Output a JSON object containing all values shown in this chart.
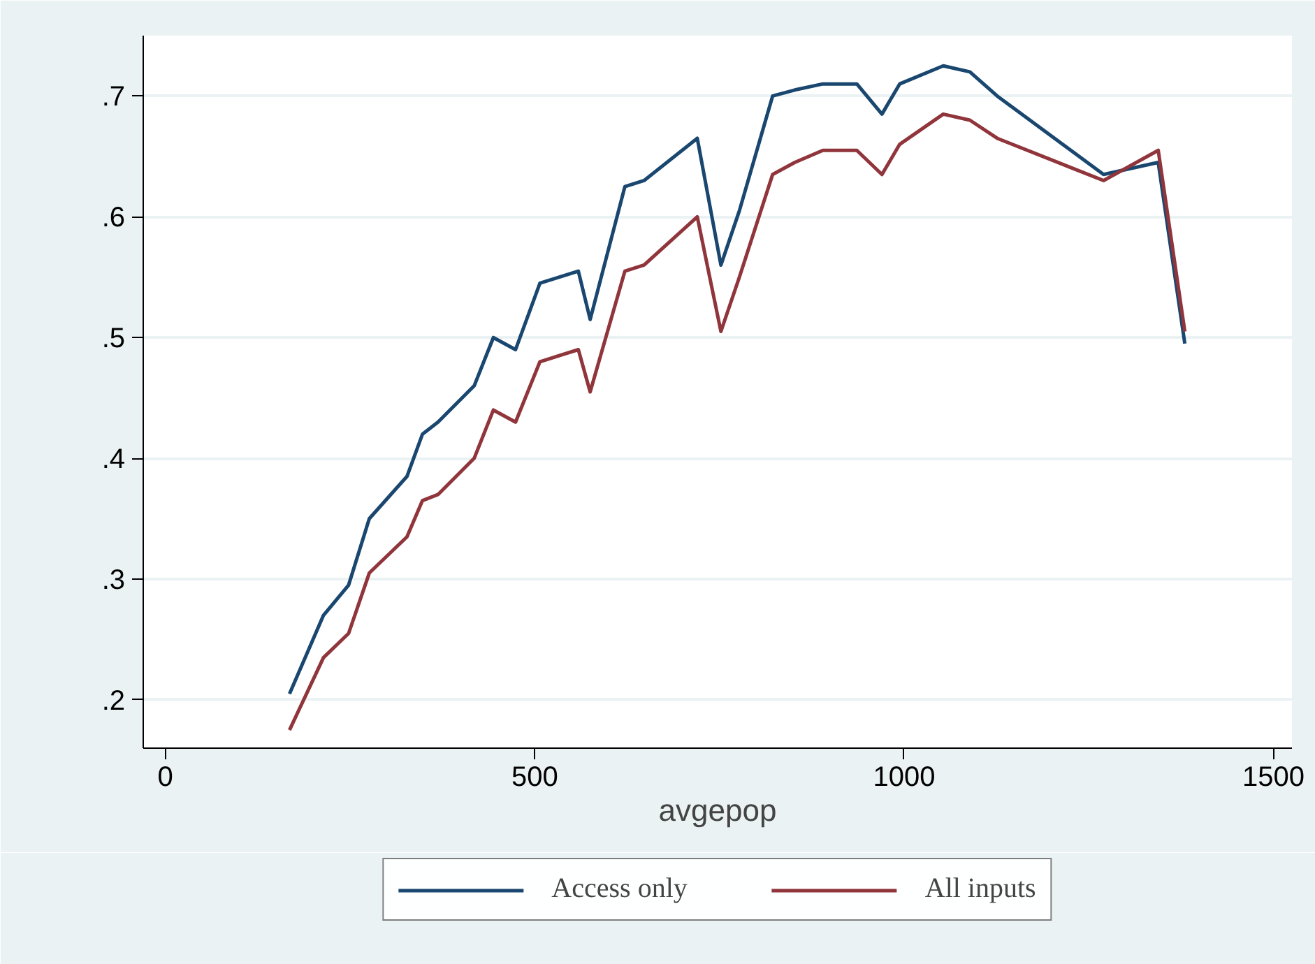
{
  "chart_data": {
    "type": "line",
    "xlabel": "avgepop",
    "x": [
      168,
      214,
      248,
      276,
      327,
      348,
      369,
      418,
      444,
      474,
      507,
      559,
      575,
      622,
      648,
      720,
      752,
      777,
      822,
      852,
      890,
      936,
      970,
      994,
      1053,
      1089,
      1126,
      1270,
      1344,
      1380
    ],
    "series": [
      {
        "name": "Access only",
        "color": "#1a476f",
        "values": [
          0.205,
          0.27,
          0.295,
          0.35,
          0.385,
          0.42,
          0.43,
          0.46,
          0.5,
          0.49,
          0.545,
          0.555,
          0.515,
          0.625,
          0.63,
          0.665,
          0.56,
          0.605,
          0.7,
          0.705,
          0.71,
          0.71,
          0.685,
          0.71,
          0.725,
          0.72,
          0.7,
          0.635,
          0.645,
          0.495
        ]
      },
      {
        "name": "All inputs",
        "color": "#90353b",
        "values": [
          0.175,
          0.235,
          0.255,
          0.305,
          0.335,
          0.365,
          0.37,
          0.4,
          0.44,
          0.43,
          0.48,
          0.49,
          0.455,
          0.555,
          0.56,
          0.6,
          0.505,
          0.55,
          0.635,
          0.645,
          0.655,
          0.655,
          0.635,
          0.66,
          0.685,
          0.68,
          0.665,
          0.63,
          0.655,
          0.505
        ]
      }
    ],
    "xlim": [
      -30,
      1525
    ],
    "xticks": [
      0,
      500,
      1000,
      1500
    ],
    "ylim": [
      0.16,
      0.75
    ],
    "yticks": [
      {
        "value": 0.2,
        "label": ".2"
      },
      {
        "value": 0.3,
        "label": ".3"
      },
      {
        "value": 0.4,
        "label": ".4"
      },
      {
        "value": 0.5,
        "label": ".5"
      },
      {
        "value": 0.6,
        "label": ".6"
      },
      {
        "value": 0.7,
        "label": ".7"
      }
    ],
    "grid": "y",
    "legend": "bottom",
    "marker": "none",
    "line_style": "solid"
  }
}
